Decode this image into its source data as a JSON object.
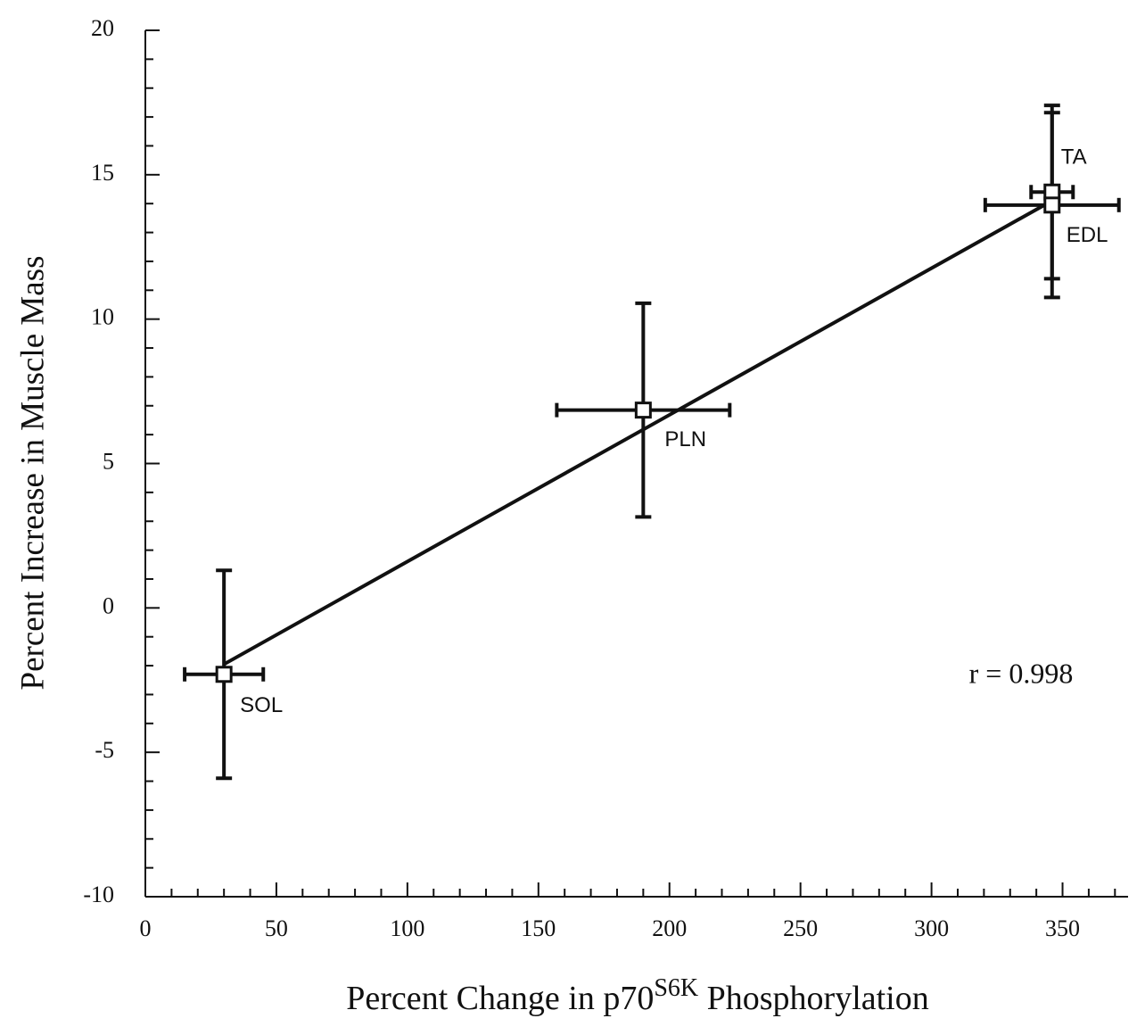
{
  "chart_data": {
    "type": "scatter",
    "ylabel": "Percent Increase in Muscle Mass",
    "xlabel": {
      "main": "Percent Change in p70",
      "sup": "S6K",
      "end": " Phosphorylation"
    },
    "xlim": [
      0,
      375
    ],
    "xticks": [
      0,
      50,
      100,
      150,
      200,
      250,
      300,
      350
    ],
    "xminorticks": [
      10,
      20,
      30,
      40,
      60,
      70,
      80,
      90,
      110,
      120,
      130,
      140,
      160,
      170,
      180,
      190,
      210,
      220,
      230,
      240,
      260,
      270,
      280,
      290,
      310,
      320,
      330,
      340,
      360,
      370
    ],
    "ylim": [
      -10,
      20
    ],
    "yticks": [
      -10,
      -5,
      0,
      5,
      10,
      15,
      20
    ],
    "yminorticks": [
      -9,
      -8,
      -7,
      -6,
      -4,
      -3,
      -2,
      -1,
      1,
      2,
      3,
      4,
      6,
      7,
      8,
      9,
      11,
      12,
      13,
      14,
      16,
      17,
      18,
      19
    ],
    "color": "#111111",
    "points": [
      {
        "name": "SOL",
        "x": 30,
        "y": -2.3,
        "xerr": 15,
        "yerr": 3.6
      },
      {
        "name": "PLN",
        "x": 190,
        "y": 6.85,
        "xerr": 33,
        "yerr": 3.7
      },
      {
        "name": "TA",
        "x": 346,
        "y": 14.4,
        "xerr": 8,
        "yerr": 3.0
      },
      {
        "name": "EDL",
        "x": 346,
        "y": 13.95,
        "xerr": 25.5,
        "yerr": 3.2
      }
    ],
    "fit": {
      "x": [
        30,
        346
      ],
      "y": [
        -1.95,
        14.1
      ]
    },
    "annotation": "r = 0.998"
  }
}
